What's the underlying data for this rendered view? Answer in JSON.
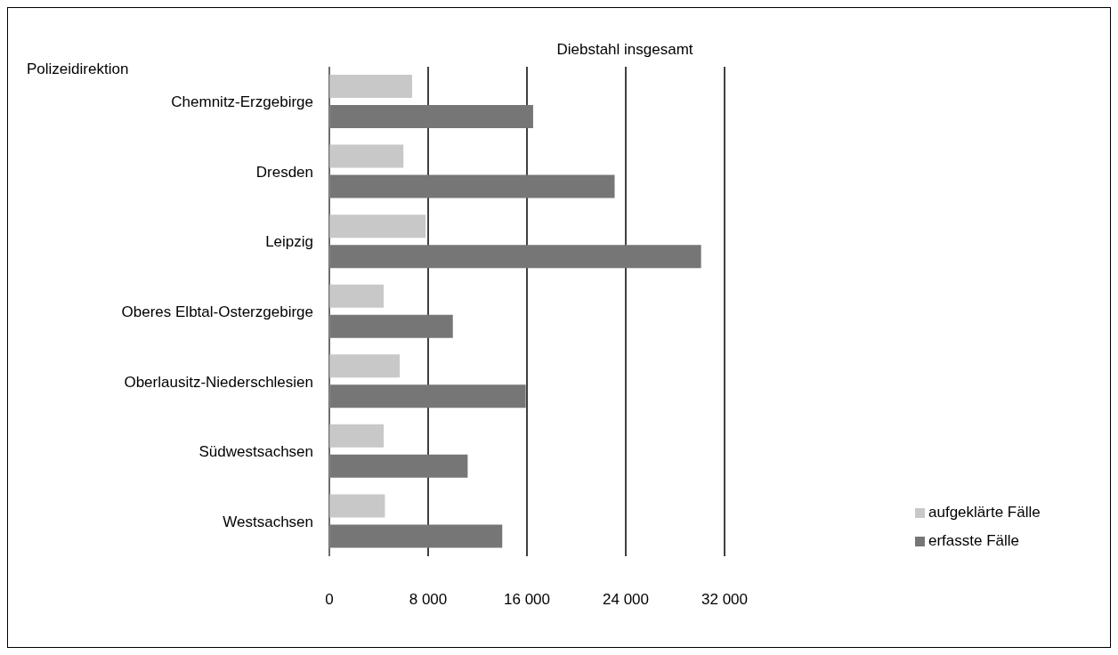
{
  "chart_data": {
    "type": "bar",
    "orientation": "horizontal",
    "title": "Diebstahl insgesamt",
    "ylabel": "Polizeidirektion",
    "categories": [
      "Chemnitz-Erzgebirge",
      "Dresden",
      "Leipzig",
      "Oberes Elbtal-Osterzgebirge",
      "Oberlausitz-Niederschlesien",
      "Südwestsachsen",
      "Westsachsen"
    ],
    "series": [
      {
        "name": "aufgeklärte Fälle",
        "color": "#c8c8c8",
        "values": [
          6700,
          6000,
          7800,
          4400,
          5700,
          4400,
          4500
        ]
      },
      {
        "name": "erfasste Fälle",
        "color": "#767676",
        "values": [
          16500,
          23100,
          30100,
          10000,
          15900,
          11200,
          14000
        ]
      }
    ],
    "xlim": [
      0,
      32000
    ],
    "xticks": [
      0,
      {
        "value": 8000,
        "label": "8 000"
      },
      {
        "value": 16000,
        "label": "16 000"
      },
      {
        "value": 24000,
        "label": "24 000"
      },
      {
        "value": 32000,
        "label": "32 000"
      }
    ],
    "grid": "x",
    "legend": "bottom right"
  }
}
